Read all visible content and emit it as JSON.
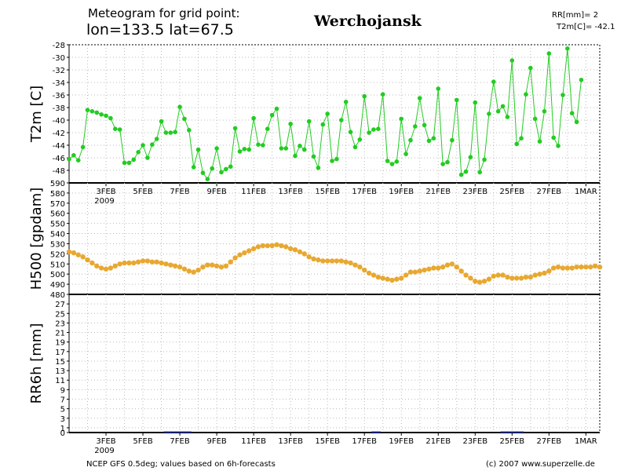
{
  "header": {
    "title_line1": "Meteogram for grid point:",
    "title_line2": "lon=133.5  lat=67.5",
    "station": "Werchojansk",
    "rr_summary": "RR[mm]= 2",
    "t2m_summary": "T2m[C]= -42.1"
  },
  "footer": {
    "left": "NCEP GFS 0.5deg; values based on 6h-forecasts",
    "right": "(c) 2007 www.superzelle.de"
  },
  "colors": {
    "t2m": "#22cc22",
    "h500": "#e8a830",
    "rr": "#2233cc",
    "grid": "#bbbbbb"
  },
  "chart_data": [
    {
      "type": "line",
      "ylabel": "T2m [C]",
      "ylim": [
        -50,
        -28
      ],
      "yticks": [
        -28,
        -30,
        -32,
        -34,
        -36,
        -38,
        -40,
        -42,
        -44,
        -46,
        -48
      ],
      "grid": true,
      "x_unit": "6h steps from 1 Feb 2009",
      "x_ticks": [
        {
          "step": 8,
          "label": "3FEB",
          "sub": "2009"
        },
        {
          "step": 16,
          "label": "5FEB"
        },
        {
          "step": 24,
          "label": "7FEB"
        },
        {
          "step": 32,
          "label": "9FEB"
        },
        {
          "step": 40,
          "label": "11FEB"
        },
        {
          "step": 48,
          "label": "13FEB"
        },
        {
          "step": 56,
          "label": "15FEB"
        },
        {
          "step": 64,
          "label": "17FEB"
        },
        {
          "step": 72,
          "label": "19FEB"
        },
        {
          "step": 80,
          "label": "21FEB"
        },
        {
          "step": 88,
          "label": "23FEB"
        },
        {
          "step": 96,
          "label": "25FEB"
        },
        {
          "step": 104,
          "label": "27FEB"
        },
        {
          "step": 112,
          "label": "1MAR"
        }
      ],
      "series": [
        {
          "values": [
            -46.2,
            -45.6,
            -46.4,
            -44.3,
            -38.4,
            -38.6,
            -38.8,
            -39.1,
            -39.3,
            -39.7,
            -41.4,
            -41.5,
            -46.8,
            -46.8,
            -46.3,
            -45.1,
            -44.0,
            -46.0,
            -43.9,
            -43.0,
            -40.2,
            -42.0,
            -42.0,
            -41.9,
            -37.9,
            -39.8,
            -41.6,
            -47.5,
            -44.7,
            -48.4,
            -49.4,
            -47.7,
            -44.5,
            -48.3,
            -47.8,
            -47.4,
            -41.3,
            -45.0,
            -44.6,
            -44.7,
            -39.7,
            -43.9,
            -44.0,
            -41.4,
            -39.2,
            -38.2,
            -44.5,
            -44.5,
            -40.6,
            -45.7,
            -44.1,
            -44.7,
            -40.2,
            -45.8,
            -47.6,
            -40.7,
            -39.0,
            -46.5,
            -46.2,
            -40.0,
            -37.1,
            -41.9,
            -44.3,
            -43.1,
            -36.2,
            -42.0,
            -41.5,
            -41.4,
            -35.9,
            -46.5,
            -47.0,
            -46.6,
            -39.8,
            -45.4,
            -43.2,
            -41.0,
            -36.5,
            -40.8,
            -43.3,
            -42.9,
            -35.0,
            -47.0,
            -46.7,
            -43.2,
            -36.8,
            -48.7,
            -48.2,
            -45.9,
            -37.2,
            -48.3,
            -46.3,
            -39.0,
            -33.9,
            -38.6,
            -37.8,
            -39.5,
            -30.5,
            -43.8,
            -42.9,
            -35.9,
            -31.7,
            -39.8,
            -43.4,
            -38.6,
            -29.4,
            -42.8,
            -44.1,
            -36.0,
            -28.6,
            -38.9,
            -40.3,
            -33.6
          ]
        }
      ]
    },
    {
      "type": "line",
      "ylabel": "H500 [gpdam]",
      "ylim": [
        480,
        590
      ],
      "yticks": [
        590,
        580,
        570,
        560,
        550,
        540,
        530,
        520,
        510,
        500,
        490,
        480
      ],
      "grid": true,
      "series": [
        {
          "values": [
            522,
            521,
            519,
            517,
            514,
            511,
            508,
            506,
            505,
            506,
            508,
            510,
            511,
            511,
            511,
            512,
            513,
            513,
            512,
            512,
            511,
            510,
            509,
            508,
            507,
            505,
            503,
            502,
            504,
            507,
            509,
            509,
            508,
            507,
            508,
            512,
            516,
            519,
            521,
            523,
            525,
            527,
            528,
            528,
            528,
            529,
            528,
            527,
            525,
            524,
            522,
            520,
            517,
            515,
            514,
            513,
            513,
            513,
            513,
            513,
            512,
            511,
            509,
            507,
            504,
            501,
            499,
            497,
            496,
            495,
            494,
            495,
            496,
            499,
            502,
            502,
            503,
            504,
            505,
            506,
            506,
            507,
            509,
            510,
            507,
            503,
            499,
            496,
            493,
            492,
            493,
            495,
            498,
            499,
            499,
            497,
            496,
            496,
            496,
            497,
            497,
            499,
            500,
            501,
            503,
            506,
            507,
            506,
            506,
            506,
            507,
            507,
            507,
            507,
            508,
            507
          ]
        }
      ]
    },
    {
      "type": "bar",
      "ylabel": "RR6h [mm]",
      "ylim": [
        0,
        29
      ],
      "yticks": [
        27,
        25,
        23,
        21,
        19,
        17,
        15,
        13,
        11,
        9,
        7,
        5,
        3,
        1,
        0
      ],
      "grid": true,
      "x_ticks": [
        {
          "step": 8,
          "label": "3FEB",
          "sub": "2009"
        },
        {
          "step": 16,
          "label": "5FEB"
        },
        {
          "step": 24,
          "label": "7FEB"
        },
        {
          "step": 32,
          "label": "9FEB"
        },
        {
          "step": 40,
          "label": "11FEB"
        },
        {
          "step": 48,
          "label": "13FEB"
        },
        {
          "step": 56,
          "label": "15FEB"
        },
        {
          "step": 64,
          "label": "17FEB"
        },
        {
          "step": 72,
          "label": "19FEB"
        },
        {
          "step": 80,
          "label": "21FEB"
        },
        {
          "step": 88,
          "label": "23FEB"
        },
        {
          "step": 96,
          "label": "25FEB"
        },
        {
          "step": 104,
          "label": "27FEB"
        },
        {
          "step": 112,
          "label": "1MAR"
        }
      ],
      "bars": [
        {
          "step": 21,
          "value": 0.15
        },
        {
          "step": 22,
          "value": 0.2
        },
        {
          "step": 23,
          "value": 0.15
        },
        {
          "step": 24,
          "value": 0.1
        },
        {
          "step": 25,
          "value": 0.15
        },
        {
          "step": 26,
          "value": 0.1
        },
        {
          "step": 66,
          "value": 0.15
        },
        {
          "step": 67,
          "value": 0.1
        },
        {
          "step": 94,
          "value": 0.1
        },
        {
          "step": 95,
          "value": 0.15
        },
        {
          "step": 96,
          "value": 0.2
        },
        {
          "step": 97,
          "value": 0.25
        },
        {
          "step": 98,
          "value": 0.15
        }
      ]
    }
  ]
}
